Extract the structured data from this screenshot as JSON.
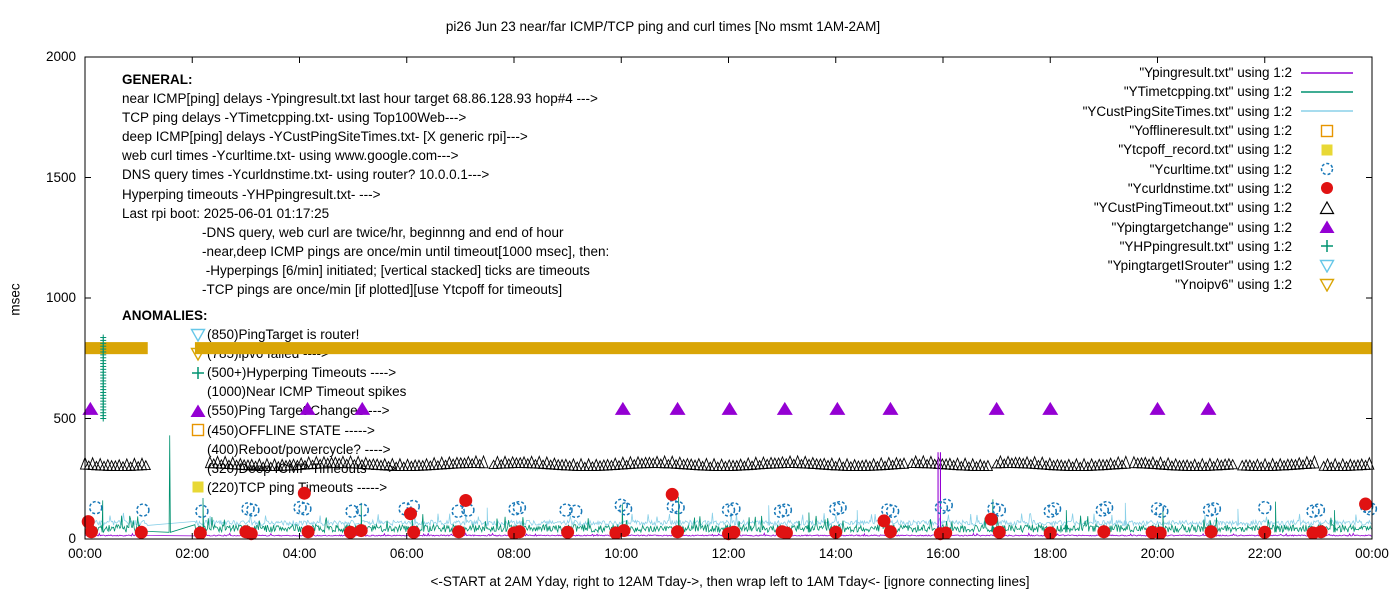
{
  "title": "pi26 Jun 23  near/far ICMP/TCP ping and curl times [No msmt 1AM-2AM]",
  "y_axis": {
    "label": "msec",
    "ticks": [
      0,
      500,
      1000,
      1500,
      2000
    ],
    "max": 2000
  },
  "x_axis": {
    "tick_labels": [
      "00:00",
      "02:00",
      "04:00",
      "06:00",
      "08:00",
      "10:00",
      "12:00",
      "14:00",
      "16:00",
      "18:00",
      "20:00",
      "22:00",
      "00:00"
    ],
    "label": "<-START at 2AM Yday, right to 12AM Tday->, then wrap left to 1AM Tday<- [ignore connecting lines]"
  },
  "general": {
    "heading": "GENERAL:",
    "lines": [
      {
        "text": "near ICMP[ping] delays -Ypingresult.txt last hour target 68.86.128.93 hop#4 --->",
        "indent": 0
      },
      {
        "text": "TCP ping delays -YTimetcpping.txt- using Top100Web--->",
        "indent": 0
      },
      {
        "text": "deep ICMP[ping] delays -YCustPingSiteTimes.txt- [X generic rpi]--->",
        "indent": 0
      },
      {
        "text": "web curl times -Ycurltime.txt- using www.google.com--->",
        "indent": 0
      },
      {
        "text": "DNS query times -Ycurldnstime.txt- using router? 10.0.0.1--->",
        "indent": 0
      },
      {
        "text": "Hyperping timeouts -YHPpingresult.txt- --->",
        "indent": 0
      },
      {
        "text": "Last rpi boot: 2025-06-01 01:17:25",
        "indent": 0
      },
      {
        "text": "-DNS query, web curl are twice/hr, beginnng and end of hour",
        "indent": 80
      },
      {
        "text": "-near,deep ICMP pings are once/min until timeout[1000 msec], then:",
        "indent": 80
      },
      {
        "text": " -Hyperpings [6/min] initiated; [vertical stacked] ticks are timeouts",
        "indent": 80
      },
      {
        "text": "-TCP pings are once/min [if plotted][use Ytcpoff for timeouts]",
        "indent": 80
      }
    ]
  },
  "anomalies": {
    "heading": "ANOMALIES:",
    "items": [
      {
        "icon": "tri-down-open",
        "color": "#67c7e8",
        "text": "(850)PingTarget is router!"
      },
      {
        "icon": "tri-down-open",
        "color": "#d9a506",
        "text": "(785)ipv6 failed ---->"
      },
      {
        "icon": "plus",
        "color": "#009270",
        "text": "(500+)Hyperping Timeouts ---->"
      },
      {
        "icon": "none",
        "color": "#000000",
        "text": "(1000)Near ICMP Timeout spikes"
      },
      {
        "icon": "tri-up-filled",
        "color": "#9400d3",
        "text": "(550)Ping Target Changes --->"
      },
      {
        "icon": "square-open",
        "color": "#e79500",
        "text": "(450)OFFLINE STATE ----->"
      },
      {
        "icon": "none",
        "color": "#000000",
        "text": "(400)Reboot/powercycle? ---->"
      },
      {
        "icon": "none",
        "color": "#000000",
        "text": "(320)Deep ICMP Timeouts ---->"
      },
      {
        "icon": "square-filled",
        "color": "#e8d835",
        "text": "(220)TCP ping Timeouts ----->"
      }
    ]
  },
  "legend": [
    {
      "label": "\"Ypingresult.txt\" using 1:2",
      "style": "line",
      "color": "#9400d3"
    },
    {
      "label": "\"YTimetcpping.txt\" using 1:2",
      "style": "line",
      "color": "#009270"
    },
    {
      "label": "\"YCustPingSiteTimes.txt\" using 1:2",
      "style": "line",
      "color": "#8ad0e8"
    },
    {
      "label": "\"Yofflineresult.txt\" using 1:2",
      "style": "square-open",
      "color": "#e79500"
    },
    {
      "label": "\"Ytcpoff_record.txt\" using 1:2",
      "style": "square-filled",
      "color": "#e8d835"
    },
    {
      "label": "\"Ycurltime.txt\" using 1:2",
      "style": "circle-open",
      "color": "#1878b8"
    },
    {
      "label": "\"Ycurldnstime.txt\" using 1:2",
      "style": "circle-filled",
      "color": "#e01212"
    },
    {
      "label": "\"YCustPingTimeout.txt\" using 1:2",
      "style": "tri-up-open",
      "color": "#000000"
    },
    {
      "label": "\"Ypingtargetchange\" using 1:2",
      "style": "tri-up-filled",
      "color": "#9400d3"
    },
    {
      "label": "\"YHPpingresult.txt\" using 1:2",
      "style": "plus",
      "color": "#009270"
    },
    {
      "label": "\"YpingtargetISrouter\" using 1:2",
      "style": "tri-down-open",
      "color": "#67c7e8"
    },
    {
      "label": "\"Ynoipv6\" using 1:2",
      "style": "tri-down-open",
      "color": "#d9a506"
    }
  ],
  "chart_data": {
    "type": "mixed-time-series",
    "x_range_hours": [
      0,
      24
    ],
    "y_range_msec": [
      0,
      2000
    ],
    "grid": false,
    "legend_position": "top-right",
    "measurement_gap_hours": [
      1.17,
      2.05
    ],
    "series": [
      {
        "name": "near-icmp-ping-line",
        "file": "Ypingresult.txt",
        "style": "line",
        "color": "#9400d3",
        "baseline_msec": 12,
        "noise_msec": 5,
        "seed": 11,
        "spikes": []
      },
      {
        "name": "tcp-ping-line",
        "file": "YTimetcpping.txt",
        "style": "line",
        "color": "#009270",
        "baseline_msec": 28,
        "noise_msec": 32,
        "seed": 7,
        "spikes": [
          {
            "t": 0.33,
            "v": 160
          },
          {
            "t": 1.58,
            "v": 430
          },
          {
            "t": 2.2,
            "v": 170
          },
          {
            "t": 5.15,
            "v": 150
          },
          {
            "t": 6.1,
            "v": 125
          },
          {
            "t": 10.02,
            "v": 145
          },
          {
            "t": 11.07,
            "v": 175
          },
          {
            "t": 13.5,
            "v": 110
          },
          {
            "t": 16.93,
            "v": 165
          },
          {
            "t": 18.3,
            "v": 120
          },
          {
            "t": 20.1,
            "v": 130
          },
          {
            "t": 22.2,
            "v": 155
          },
          {
            "t": 23.3,
            "v": 120
          }
        ]
      },
      {
        "name": "deep-icmp-ping-line",
        "file": "YCustPingSiteTimes.txt",
        "style": "line",
        "color": "#8ad0e8",
        "baseline_msec": 56,
        "noise_msec": 22,
        "seed": 3,
        "spikes": [
          {
            "t": 7.5,
            "v": 130
          },
          {
            "t": 12.75,
            "v": 140
          },
          {
            "t": 14.4,
            "v": 120
          },
          {
            "t": 19.4,
            "v": 150
          },
          {
            "t": 21.5,
            "v": 125
          }
        ]
      },
      {
        "name": "web-curl-points",
        "file": "Ycurltime.txt",
        "style": "circle-open",
        "color": "#1878b8",
        "points": [
          [
            0.2,
            130
          ],
          [
            1.08,
            120
          ],
          [
            2.18,
            115
          ],
          [
            3.04,
            125
          ],
          [
            3.13,
            120
          ],
          [
            4.01,
            130
          ],
          [
            4.1,
            125
          ],
          [
            4.98,
            115
          ],
          [
            5.17,
            120
          ],
          [
            5.97,
            125
          ],
          [
            6.12,
            135
          ],
          [
            6.96,
            115
          ],
          [
            7.14,
            120
          ],
          [
            8.02,
            125
          ],
          [
            8.1,
            130
          ],
          [
            8.97,
            120
          ],
          [
            9.15,
            115
          ],
          [
            10.0,
            140
          ],
          [
            10.08,
            125
          ],
          [
            10.97,
            135
          ],
          [
            11.06,
            130
          ],
          [
            12.0,
            120
          ],
          [
            12.1,
            125
          ],
          [
            12.97,
            115
          ],
          [
            13.06,
            120
          ],
          [
            14.0,
            125
          ],
          [
            14.08,
            130
          ],
          [
            14.97,
            120
          ],
          [
            15.06,
            115
          ],
          [
            15.97,
            130
          ],
          [
            16.06,
            140
          ],
          [
            16.95,
            125
          ],
          [
            17.05,
            120
          ],
          [
            18.0,
            115
          ],
          [
            18.08,
            125
          ],
          [
            18.97,
            120
          ],
          [
            19.05,
            130
          ],
          [
            20.0,
            125
          ],
          [
            20.08,
            115
          ],
          [
            20.97,
            120
          ],
          [
            21.06,
            125
          ],
          [
            22.0,
            130
          ],
          [
            22.9,
            115
          ],
          [
            23.0,
            120
          ],
          [
            23.9,
            135
          ],
          [
            23.97,
            125
          ]
        ]
      },
      {
        "name": "dns-query-points",
        "file": "Ycurldnstime.txt",
        "style": "circle-filled",
        "color": "#e01212",
        "points": [
          [
            0.06,
            72
          ],
          [
            0.12,
            30
          ],
          [
            1.05,
            28
          ],
          [
            2.15,
            25
          ],
          [
            3.0,
            30
          ],
          [
            3.1,
            22
          ],
          [
            4.09,
            190
          ],
          [
            4.16,
            30
          ],
          [
            4.95,
            28
          ],
          [
            5.15,
            35
          ],
          [
            6.07,
            105
          ],
          [
            6.13,
            28
          ],
          [
            6.97,
            30
          ],
          [
            7.1,
            160
          ],
          [
            8.0,
            25
          ],
          [
            8.1,
            30
          ],
          [
            9.0,
            28
          ],
          [
            9.9,
            25
          ],
          [
            10.05,
            35
          ],
          [
            10.95,
            185
          ],
          [
            11.05,
            30
          ],
          [
            12.0,
            22
          ],
          [
            12.1,
            28
          ],
          [
            13.0,
            30
          ],
          [
            13.08,
            25
          ],
          [
            14.0,
            28
          ],
          [
            14.9,
            75
          ],
          [
            15.02,
            30
          ],
          [
            15.95,
            22
          ],
          [
            16.05,
            25
          ],
          [
            16.9,
            82
          ],
          [
            17.05,
            28
          ],
          [
            18.0,
            25
          ],
          [
            19.0,
            30
          ],
          [
            19.9,
            28
          ],
          [
            20.05,
            25
          ],
          [
            21.0,
            30
          ],
          [
            22.0,
            28
          ],
          [
            22.9,
            25
          ],
          [
            23.05,
            30
          ],
          [
            23.88,
            145
          ]
        ]
      },
      {
        "name": "deep-icmp-timeout-band",
        "file": "YCustPingTimeout.txt",
        "style": "tri-up-open-band",
        "color": "#000000",
        "value_msec": 315,
        "segments_hours": [
          [
            0,
            1.17
          ],
          [
            2.33,
            7.48
          ],
          [
            7.62,
            15.28
          ],
          [
            15.42,
            16.84
          ],
          [
            17.0,
            19.42
          ],
          [
            19.56,
            21.44
          ],
          [
            21.58,
            22.95
          ],
          [
            23.1,
            24
          ]
        ]
      },
      {
        "name": "ping-target-change-points",
        "file": "Ypingtargetchange",
        "style": "tri-up-filled",
        "color": "#9400d3",
        "value_msec": 540,
        "times_hours": [
          0.1,
          4.15,
          5.17,
          10.03,
          11.05,
          12.02,
          13.05,
          14.03,
          15.02,
          17.0,
          18.0,
          20.0,
          20.95
        ]
      },
      {
        "name": "hyperping-timeout-stacks",
        "file": "YHPpingresult.txt",
        "style": "plus-stack",
        "color": "#009270",
        "stacks": [
          {
            "t": 0.34,
            "v_from": 500,
            "v_to": 845
          }
        ]
      },
      {
        "name": "noipv6-band",
        "file": "Ynoipv6",
        "style": "band",
        "color": "#d9a506",
        "value_msec": 792,
        "thickness_msec": 50,
        "segments_hours": [
          [
            0,
            1.17
          ],
          [
            2.05,
            24
          ]
        ]
      },
      {
        "name": "near-icmp-timeout-spike",
        "file": "Ypingresult.txt",
        "style": "vline",
        "color": "#9400d3",
        "spikes": [
          {
            "t": 15.93,
            "v": 360
          }
        ]
      }
    ]
  }
}
